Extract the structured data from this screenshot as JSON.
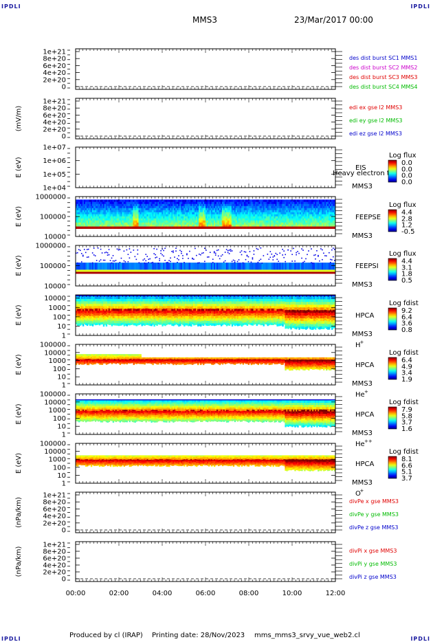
{
  "header": {
    "left_mark": "IPDLI",
    "right_mark": "IPDLI",
    "spacecraft": "MMS3",
    "date_time": "23/Mar/2017 00:00"
  },
  "footer": {
    "produced_by": "Produced by cl (IRAP)",
    "printing_date": "Printing date: 28/Nov/2023",
    "script_name": "mms_mms3_srvy_vue_web2.cl",
    "left_mark": "IPDLI",
    "right_mark": "IPDLI"
  },
  "x_axis": {
    "tick_labels": [
      "00:00",
      "02:00",
      "04:00",
      "06:00",
      "08:00",
      "10:00",
      "12:00"
    ],
    "range_hours": [
      0,
      12
    ]
  },
  "colors": {
    "red": "#e00000",
    "green": "#00bb00",
    "blue": "#0000cc",
    "magenta": "#cc00cc"
  },
  "chart_data": [
    {
      "type": "line",
      "ylabel": "",
      "ytick_labels": [
        "0",
        "2e+20",
        "4e+20",
        "6e+20",
        "8e+20",
        "1e+21"
      ],
      "ylim": [
        0,
        1e+21
      ],
      "zero_dashed": true,
      "series": [
        {
          "name": "des dist burst SC1 MMS1",
          "color": "#0000cc",
          "values": []
        },
        {
          "name": "des dist burst SC2 MMS2",
          "color": "#cc00cc",
          "values": []
        },
        {
          "name": "des dist burst SC3 MMS3",
          "color": "#e00000",
          "values": []
        },
        {
          "name": "des dist burst SC4 MMS4",
          "color": "#00bb00",
          "values": []
        }
      ]
    },
    {
      "type": "line",
      "ylabel": "(mV/m)",
      "ytick_labels": [
        "0",
        "2e+20",
        "4e+20",
        "6e+20",
        "8e+20",
        "1e+21"
      ],
      "ylim": [
        0,
        1e+21
      ],
      "zero_dashed": true,
      "series": [
        {
          "name": "edi ex gse l2 MMS3",
          "color": "#e00000",
          "values": []
        },
        {
          "name": "edi ey gse l2 MMS3",
          "color": "#00bb00",
          "values": []
        },
        {
          "name": "edi ez gse l2 MMS3",
          "color": "#0000cc",
          "values": []
        }
      ]
    },
    {
      "type": "heatmap",
      "ylabel": "E (eV)",
      "ytick_labels": [
        "1e+04",
        "1e+05",
        "1e+06",
        "1e+07"
      ],
      "ylog_range": [
        4,
        7
      ],
      "instrument": "EIS",
      "spacecraft": "MMS3",
      "overlay_text": "Heavy electron to",
      "colorbar_title": "Log flux",
      "colorbar_values": [
        "0.0",
        "0.0",
        "0.0",
        "0.0"
      ],
      "fill": "none"
    },
    {
      "type": "heatmap",
      "ylabel": "E (eV)",
      "ytick_labels": [
        "10000",
        "100000",
        "1000000"
      ],
      "ylog_range": [
        4,
        6
      ],
      "instrument": "FEEPSE",
      "spacecraft": "MMS3",
      "colorbar_title": "Log flux",
      "colorbar_values": [
        "4.4",
        "2.8",
        "1.2",
        "-0.5"
      ],
      "fill": "feepse"
    },
    {
      "type": "heatmap",
      "ylabel": "E (eV)",
      "ytick_labels": [
        "10000",
        "100000",
        "1000000"
      ],
      "ylog_range": [
        4,
        6
      ],
      "instrument": "FEEPSI",
      "spacecraft": "MMS3",
      "colorbar_title": "Log flux",
      "colorbar_values": [
        "4.4",
        "3.1",
        "1.8",
        "0.5"
      ],
      "fill": "feepsi"
    },
    {
      "type": "heatmap",
      "ylabel": "E (eV)",
      "ytick_labels": [
        "1",
        "10",
        "100",
        "1000",
        "10000"
      ],
      "ylog_range": [
        0,
        4.35
      ],
      "instrument": "HPCA",
      "spacecraft": "MMS3",
      "species_base": "H",
      "species_sup": "+",
      "colorbar_title": "Log fdist",
      "colorbar_values": [
        "9.2",
        "6.4",
        "3.6",
        "0.8"
      ],
      "fill": "hplus"
    },
    {
      "type": "heatmap",
      "ylabel": "E (eV)",
      "ytick_labels": [
        "1",
        "10",
        "100",
        "1000",
        "10000",
        "100000"
      ],
      "ylog_range": [
        0,
        5
      ],
      "instrument": "HPCA",
      "spacecraft": "MMS3",
      "species_base": "He",
      "species_sup": "+",
      "colorbar_title": "Log fdist",
      "colorbar_values": [
        "6.4",
        "4.9",
        "3.4",
        "1.9"
      ],
      "fill": "heplus"
    },
    {
      "type": "heatmap",
      "ylabel": "E (eV)",
      "ytick_labels": [
        "1",
        "10",
        "100",
        "1000",
        "10000",
        "100000"
      ],
      "ylog_range": [
        0,
        5
      ],
      "instrument": "HPCA",
      "spacecraft": "MMS3",
      "species_base": "He",
      "species_sup": "++",
      "colorbar_title": "Log fdist",
      "colorbar_values": [
        "7.9",
        "5.8",
        "3.7",
        "1.6"
      ],
      "fill": "heplusplus"
    },
    {
      "type": "heatmap",
      "ylabel": "E (eV)",
      "ytick_labels": [
        "1",
        "10",
        "100",
        "1000",
        "10000",
        "100000"
      ],
      "ylog_range": [
        0,
        5
      ],
      "instrument": "HPCA",
      "spacecraft": "MMS3",
      "species_base": "O",
      "species_sup": "+",
      "colorbar_title": "Log fdist",
      "colorbar_values": [
        "8.1",
        "6.6",
        "5.1",
        "3.7"
      ],
      "fill": "oplus"
    },
    {
      "type": "line",
      "ylabel": "(nPa/km)",
      "ytick_labels": [
        "0",
        "2e+20",
        "4e+20",
        "6e+20",
        "8e+20",
        "1e+21"
      ],
      "ylim": [
        0,
        1e+21
      ],
      "zero_dashed": true,
      "series": [
        {
          "name": "divPe x gse MMS3",
          "color": "#e00000",
          "values": []
        },
        {
          "name": "divPe y gse MMS3",
          "color": "#00bb00",
          "values": []
        },
        {
          "name": "divPe z gse MMS3",
          "color": "#0000cc",
          "values": []
        }
      ]
    },
    {
      "type": "line",
      "ylabel": "(nPa/km)",
      "ytick_labels": [
        "0",
        "2e+20",
        "4e+20",
        "6e+20",
        "8e+20",
        "1e+21"
      ],
      "ylim": [
        0,
        1e+21
      ],
      "zero_dashed": true,
      "series": [
        {
          "name": "divPi x gse MMS3",
          "color": "#e00000",
          "values": []
        },
        {
          "name": "divPi y gse MMS3",
          "color": "#00bb00",
          "values": []
        },
        {
          "name": "divPi z gse MMS3",
          "color": "#0000cc",
          "values": []
        }
      ]
    }
  ]
}
